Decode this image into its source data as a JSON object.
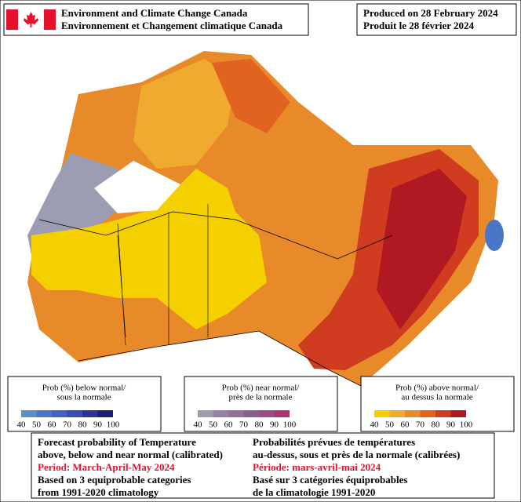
{
  "header": {
    "title_en": "Environment and Climate Change Canada",
    "title_fr": "Environnement et Changement climatique Canada"
  },
  "produced": {
    "en": "Produced on 28 February 2024",
    "fr": "Produit le 28 février 2024"
  },
  "legends": [
    {
      "line1": "Prob (%) below normal/",
      "line2": "sous la normale",
      "ticks": [
        40,
        50,
        60,
        70,
        80,
        90,
        100
      ],
      "colors": [
        "#5b8fcc",
        "#4a76c8",
        "#3f62c4",
        "#3e4cb8",
        "#2c3296",
        "#1c1e70"
      ]
    },
    {
      "line1": "Prob (%) near normal/",
      "line2": "près de la normale",
      "ticks": [
        40,
        50,
        60,
        70,
        80,
        90,
        100
      ],
      "colors": [
        "#9c9cb2",
        "#9282a4",
        "#93709a",
        "#8c5e8c",
        "#9a4c86",
        "#b03270"
      ]
    },
    {
      "line1": "Prob (%) above normal/",
      "line2": "au dessus la normale",
      "ticks": [
        40,
        50,
        60,
        70,
        80,
        90,
        100
      ],
      "colors": [
        "#f5d000",
        "#f0aa30",
        "#e88a2a",
        "#e06420",
        "#d03c20",
        "#b01822"
      ]
    }
  ],
  "footer": {
    "en": [
      "Forecast probability of Temperature",
      "above, below and near normal (calibrated)",
      "Period: March-April-May 2024",
      "Based on 3 equiprobable categories",
      " from 1991-2020 climatology"
    ],
    "fr": [
      "Probabilités prévues de températures",
      "au-dessus, sous et près de la normale (calibrées)",
      "Période: mars-avril-mai 2024",
      "Basé sur 3 catégories équiprobables",
      "de la climatologie 1991-2020"
    ]
  }
}
